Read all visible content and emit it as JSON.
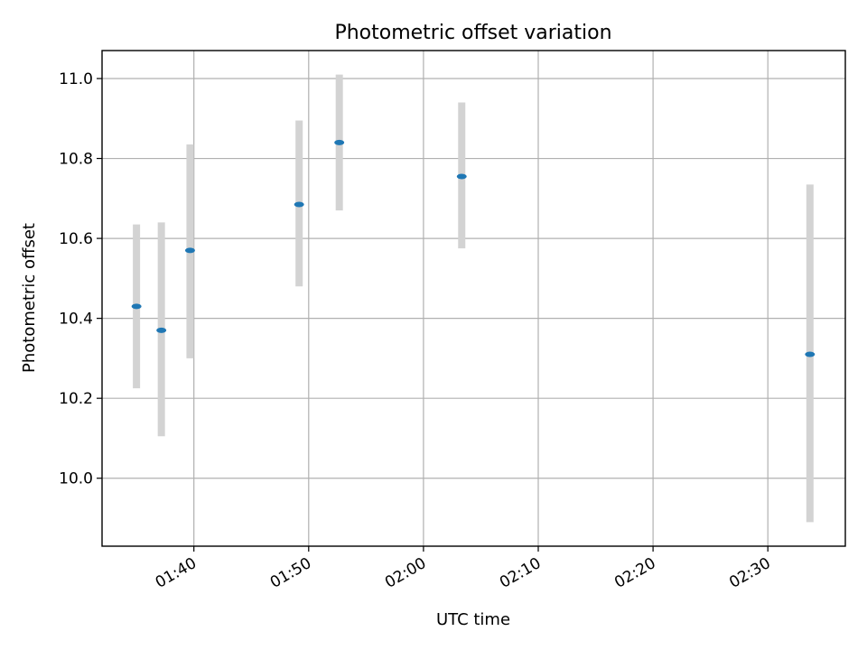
{
  "chart_data": {
    "type": "scatter",
    "title": "Photometric offset variation",
    "xlabel": "UTC time",
    "ylabel": "Photometric offset",
    "x_ticks": [
      "01:40",
      "01:50",
      "02:00",
      "02:10",
      "02:20",
      "02:30"
    ],
    "y_ticks": [
      10.0,
      10.2,
      10.4,
      10.6,
      10.8,
      11.0
    ],
    "xlim": [
      "01:32:00",
      "02:36:45"
    ],
    "ylim": [
      9.83,
      11.07
    ],
    "grid": true,
    "marker_color": "#1f77b4",
    "errorbar_color": "#d3d3d3",
    "points": [
      {
        "time": "01:35:00",
        "value": 10.43,
        "err_low": 10.225,
        "err_high": 10.635
      },
      {
        "time": "01:37:10",
        "value": 10.37,
        "err_low": 10.105,
        "err_high": 10.64
      },
      {
        "time": "01:39:40",
        "value": 10.57,
        "err_low": 10.3,
        "err_high": 10.835
      },
      {
        "time": "01:49:10",
        "value": 10.685,
        "err_low": 10.48,
        "err_high": 10.895
      },
      {
        "time": "01:52:40",
        "value": 10.84,
        "err_low": 10.67,
        "err_high": 11.01
      },
      {
        "time": "02:03:20",
        "value": 10.755,
        "err_low": 10.575,
        "err_high": 10.94
      },
      {
        "time": "02:33:40",
        "value": 10.31,
        "err_low": 9.89,
        "err_high": 10.735
      }
    ]
  }
}
